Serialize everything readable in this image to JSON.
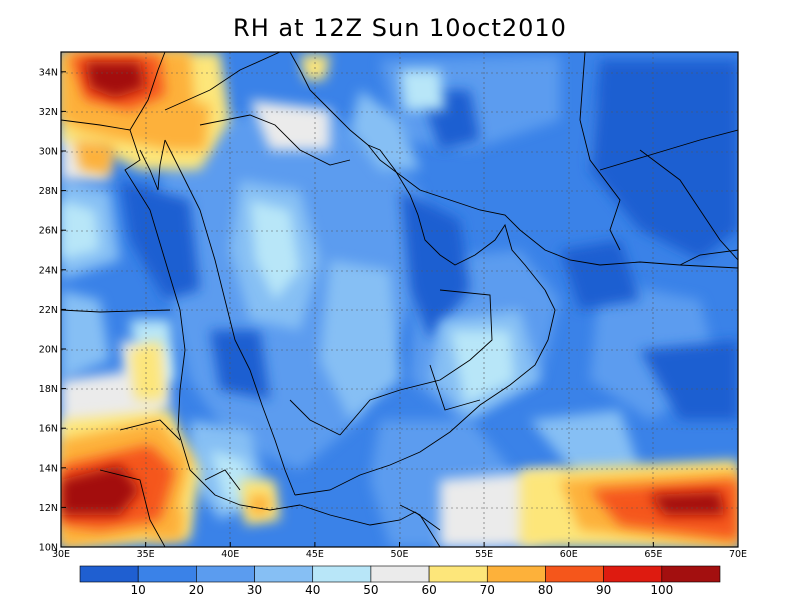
{
  "title": "RH at 12Z Sun 10oct2010",
  "map": {
    "variable": "RH",
    "lon_range": [
      30,
      70
    ],
    "lat_range": [
      10,
      35
    ],
    "lon_ticks": [
      "30E",
      "35E",
      "40E",
      "45E",
      "50E",
      "55E",
      "60E",
      "65E",
      "70E"
    ],
    "lat_ticks": [
      "10N",
      "12N",
      "14N",
      "16N",
      "18N",
      "20N",
      "22N",
      "24N",
      "26N",
      "28N",
      "30N",
      "32N",
      "34N"
    ],
    "grid": "dotted"
  },
  "colorbar": {
    "labels": [
      "10",
      "20",
      "30",
      "40",
      "50",
      "60",
      "70",
      "80",
      "90",
      "100"
    ],
    "colors": [
      "#1f5fd1",
      "#3a82e8",
      "#5b9cef",
      "#86bff4",
      "#b8e6f8",
      "#ebebeb",
      "#fde67a",
      "#fdb13a",
      "#f5561b",
      "#de1b10",
      "#a30f0f"
    ]
  }
}
